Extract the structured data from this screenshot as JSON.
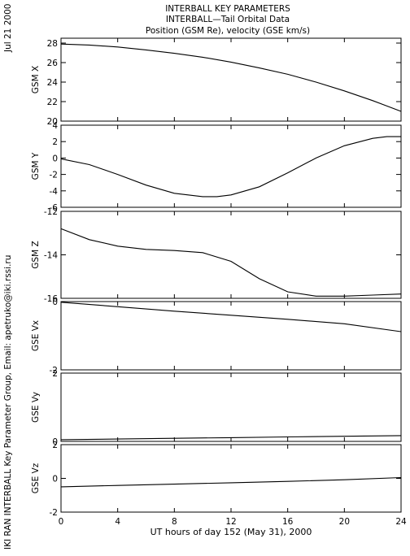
{
  "header": {
    "title1": "INTERBALL KEY PARAMETERS",
    "title2": "INTERBALL—Tail Orbital Data",
    "title3": "Position (GSM Re), velocity (GSE km/s)"
  },
  "side": {
    "date": "Jul 21 2000",
    "credit": "IKI RAN INTERBALL Key Parameter Group, Email: apetruko@iki.rssi.ru"
  },
  "chart_data": {
    "type": "line",
    "xlabel": "UT hours of day 152 (May 31), 2000",
    "xlim": [
      0,
      24
    ],
    "xticks": [
      0,
      4,
      8,
      12,
      16,
      20,
      24
    ],
    "panels": [
      {
        "ylabel": "GSM X",
        "ylim": [
          20,
          28.5
        ],
        "yticks": [
          20,
          22,
          24,
          26,
          28
        ],
        "x": [
          0,
          2,
          4,
          6,
          8,
          10,
          12,
          14,
          16,
          18,
          20,
          22,
          24
        ],
        "y": [
          27.9,
          27.8,
          27.6,
          27.3,
          26.95,
          26.55,
          26.05,
          25.45,
          24.8,
          24.0,
          23.1,
          22.1,
          21.0
        ]
      },
      {
        "ylabel": "GSM Y",
        "ylim": [
          -6,
          4
        ],
        "yticks": [
          -6,
          -4,
          -2,
          0,
          2,
          4
        ],
        "x": [
          0,
          2,
          4,
          6,
          8,
          10,
          11,
          12,
          14,
          16,
          18,
          20,
          22,
          23,
          24
        ],
        "y": [
          -0.1,
          -0.8,
          -2.0,
          -3.3,
          -4.3,
          -4.7,
          -4.7,
          -4.5,
          -3.5,
          -1.8,
          0.0,
          1.5,
          2.4,
          2.6,
          2.6
        ]
      },
      {
        "ylabel": "GSM Z",
        "ylim": [
          -16,
          -12
        ],
        "yticks": [
          -16,
          -14,
          -12
        ],
        "x": [
          0,
          2,
          4,
          6,
          8,
          10,
          12,
          14,
          16,
          18,
          20,
          22,
          24
        ],
        "y": [
          -12.8,
          -13.3,
          -13.6,
          -13.75,
          -13.8,
          -13.9,
          -14.3,
          -15.1,
          -15.7,
          -15.9,
          -15.9,
          -15.85,
          -15.8
        ]
      },
      {
        "ylabel": "GSE Vx",
        "ylim": [
          -2,
          0
        ],
        "yticks": [
          -2,
          0
        ],
        "x": [
          0,
          4,
          8,
          12,
          16,
          20,
          24
        ],
        "y": [
          -0.02,
          -0.15,
          -0.28,
          -0.4,
          -0.52,
          -0.65,
          -0.88
        ]
      },
      {
        "ylabel": "GSE Vy",
        "ylim": [
          0,
          2
        ],
        "yticks": [
          0,
          2
        ],
        "x": [
          0,
          4,
          8,
          12,
          16,
          20,
          24
        ],
        "y": [
          0.05,
          0.07,
          0.09,
          0.11,
          0.13,
          0.15,
          0.17
        ]
      },
      {
        "ylabel": "GSE Vz",
        "ylim": [
          -2,
          2
        ],
        "yticks": [
          -2,
          0,
          2
        ],
        "x": [
          0,
          4,
          8,
          12,
          16,
          20,
          24
        ],
        "y": [
          -0.5,
          -0.42,
          -0.34,
          -0.26,
          -0.18,
          -0.08,
          0.05
        ]
      }
    ]
  }
}
